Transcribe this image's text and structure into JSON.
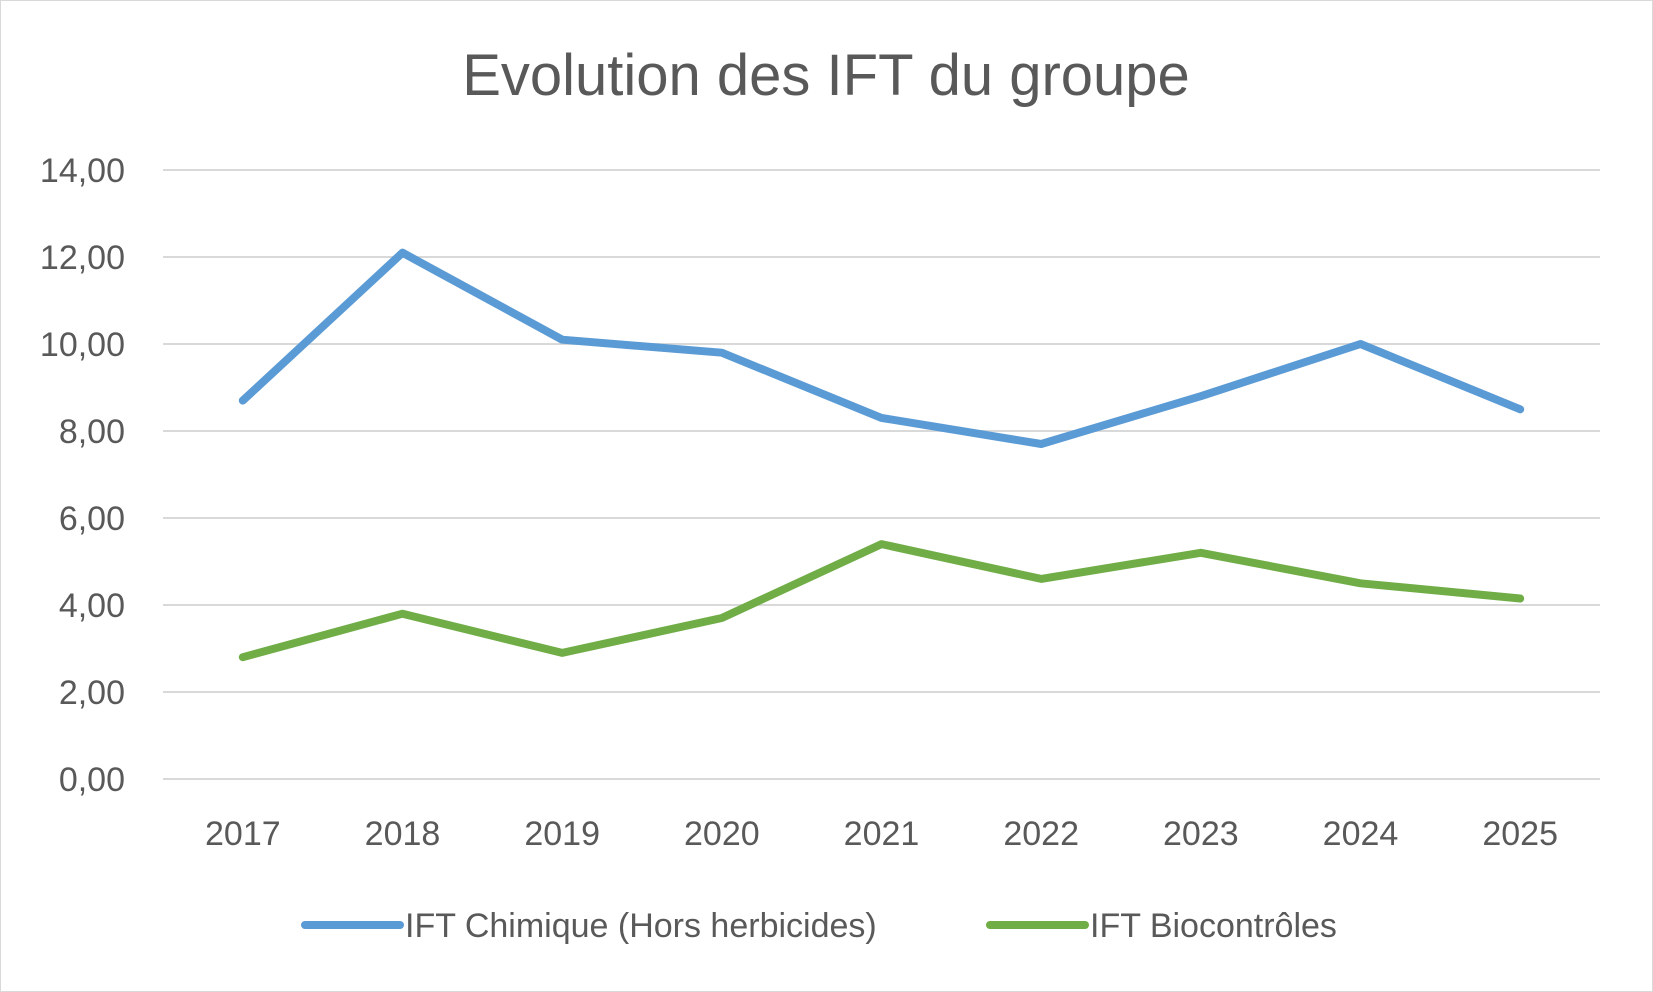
{
  "chart_data": {
    "type": "line",
    "title": "Evolution des IFT du groupe",
    "xlabel": "",
    "ylabel": "",
    "categories": [
      "2017",
      "2018",
      "2019",
      "2020",
      "2021",
      "2022",
      "2023",
      "2024",
      "2025"
    ],
    "y_ticks": [
      "0,00",
      "2,00",
      "4,00",
      "6,00",
      "8,00",
      "10,00",
      "12,00",
      "14,00"
    ],
    "ylim": [
      0,
      14
    ],
    "grid": true,
    "legend_position": "bottom",
    "series": [
      {
        "name": "IFT Chimique (Hors herbicides)",
        "color": "#5b9bd5",
        "values": [
          8.7,
          12.1,
          10.1,
          9.8,
          8.3,
          7.7,
          8.8,
          10.0,
          8.5
        ]
      },
      {
        "name": "IFT Biocontrôles",
        "color": "#70ad47",
        "values": [
          2.8,
          3.8,
          2.9,
          3.7,
          5.4,
          4.6,
          5.2,
          4.5,
          4.15
        ]
      }
    ]
  }
}
